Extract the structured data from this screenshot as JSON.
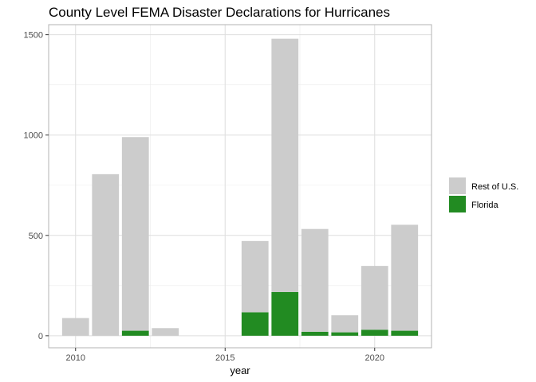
{
  "chart_data": {
    "type": "bar",
    "stacked": true,
    "title": "County Level FEMA Disaster Declarations for Hurricanes",
    "xlabel": "year",
    "ylabel": "",
    "x": [
      2010,
      2011,
      2012,
      2013,
      2014,
      2015,
      2016,
      2017,
      2018,
      2019,
      2020,
      2021
    ],
    "xlim": [
      2009.1,
      2021.9
    ],
    "ylim": [
      -60,
      1550
    ],
    "x_ticks": [
      2010,
      2015,
      2020
    ],
    "y_ticks": [
      0,
      500,
      1000,
      1500
    ],
    "grid": true,
    "legend_position": "right",
    "series": [
      {
        "name": "Rest of U.S.",
        "color": "#cccccc",
        "values": [
          88,
          805,
          965,
          38,
          0,
          0,
          355,
          1262,
          512,
          85,
          318,
          528
        ]
      },
      {
        "name": "Florida",
        "color": "#228b22",
        "values": [
          0,
          0,
          25,
          0,
          0,
          0,
          117,
          218,
          20,
          17,
          30,
          25
        ]
      }
    ]
  }
}
